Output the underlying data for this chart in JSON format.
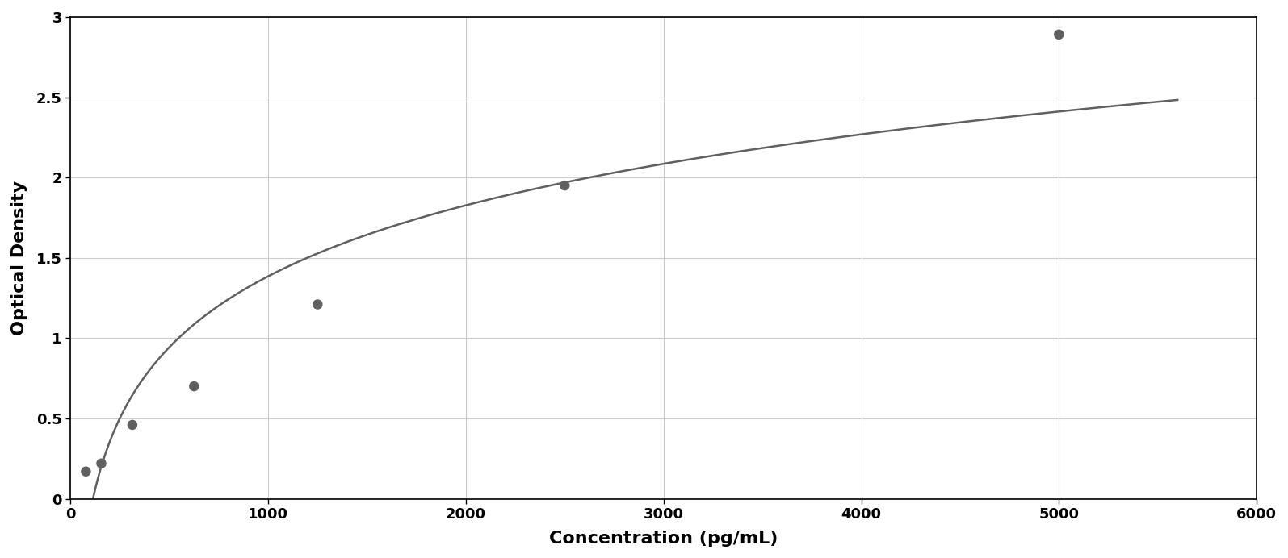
{
  "scatter_x": [
    78,
    156,
    313,
    625,
    1250,
    2500,
    5000
  ],
  "scatter_y": [
    0.17,
    0.22,
    0.46,
    0.7,
    1.21,
    1.95,
    2.89
  ],
  "scatter_color": "#606060",
  "line_color": "#606060",
  "xlabel": "Concentration (pg/mL)",
  "ylabel": "Optical Density",
  "xlim": [
    0,
    6000
  ],
  "ylim": [
    0,
    3.0
  ],
  "xticks": [
    0,
    1000,
    2000,
    3000,
    4000,
    5000,
    6000
  ],
  "yticks": [
    0,
    0.5,
    1.0,
    1.5,
    2.0,
    2.5,
    3.0
  ],
  "grid_color": "#cccccc",
  "background_color": "#ffffff",
  "border_color": "#000000",
  "xlabel_fontsize": 16,
  "ylabel_fontsize": 16,
  "tick_fontsize": 13,
  "marker_size": 9,
  "line_width": 1.8
}
